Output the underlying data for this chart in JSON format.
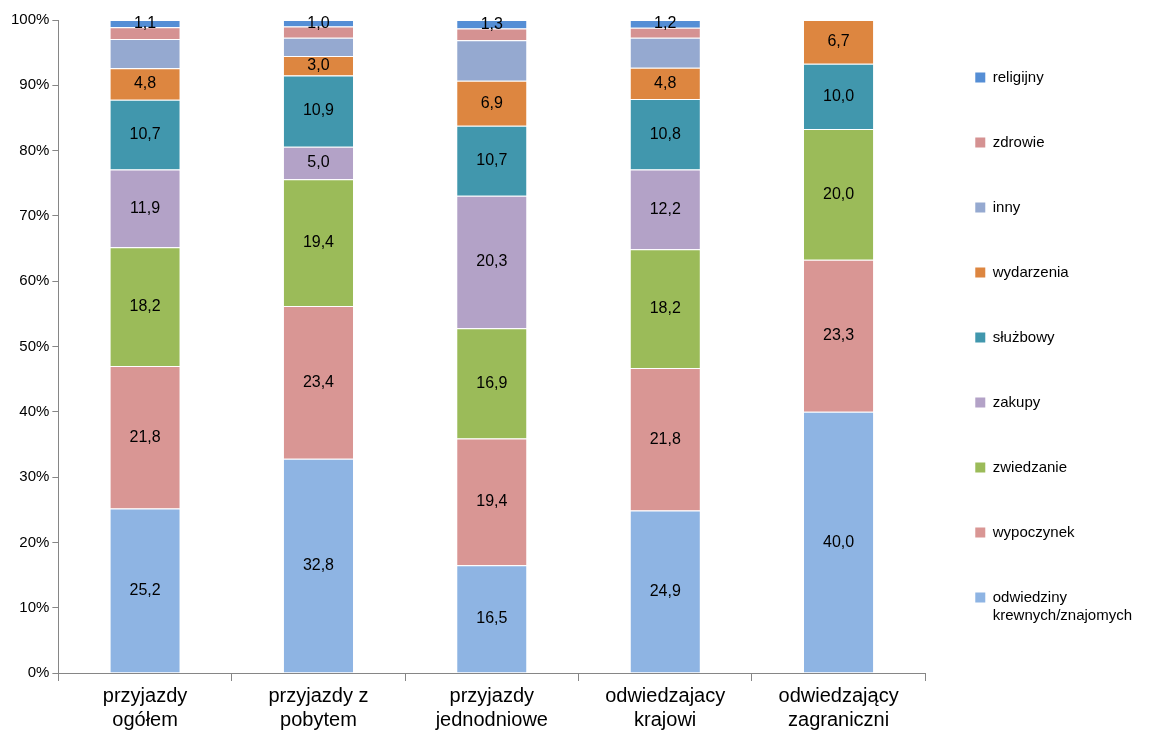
{
  "chart_data": {
    "type": "bar",
    "stacked": true,
    "categories": [
      "przyjazdy ogółem",
      "przyjazdy z pobytem",
      "przyjazdy jednodniowe",
      "odwiedzajacy krajowi",
      "odwiedzający zagraniczni"
    ],
    "ylim": [
      0,
      100
    ],
    "yticks": [
      {
        "value": 0,
        "label": "0%"
      },
      {
        "value": 10,
        "label": "10%"
      },
      {
        "value": 20,
        "label": "20%"
      },
      {
        "value": 30,
        "label": "30%"
      },
      {
        "value": 40,
        "label": "40%"
      },
      {
        "value": 50,
        "label": "50%"
      },
      {
        "value": 60,
        "label": "60%"
      },
      {
        "value": 70,
        "label": "70%"
      },
      {
        "value": 80,
        "label": "80%"
      },
      {
        "value": 90,
        "label": "90%"
      },
      {
        "value": 100,
        "label": "100%"
      }
    ],
    "grid": false,
    "legend": "right",
    "series": [
      {
        "name": "odwiedziny krewnych/znajomych",
        "color": "#8eb4e3",
        "values": [
          25.2,
          32.8,
          16.5,
          24.9,
          40.0
        ],
        "value_labels": [
          "25,2",
          "32,8",
          "16,5",
          "24,9",
          "40,0"
        ]
      },
      {
        "name": "wypoczynek",
        "color": "#d99694",
        "values": [
          21.8,
          23.4,
          19.4,
          21.8,
          23.3
        ],
        "value_labels": [
          "21,8",
          "23,4",
          "19,4",
          "21,8",
          "23,3"
        ]
      },
      {
        "name": "zwiedzanie",
        "color": "#9bbb59",
        "values": [
          18.2,
          19.4,
          16.9,
          18.2,
          20.0
        ],
        "value_labels": [
          "18,2",
          "19,4",
          "16,9",
          "18,2",
          "20,0"
        ]
      },
      {
        "name": "zakupy",
        "color": "#b3a2c7",
        "values": [
          11.9,
          5.0,
          20.3,
          12.2,
          null
        ],
        "value_labels": [
          "11,9",
          "5,0",
          "20,3",
          "12,2",
          null
        ]
      },
      {
        "name": "służbowy",
        "color": "#4197ad",
        "values": [
          10.7,
          10.9,
          10.7,
          10.8,
          10.0
        ],
        "value_labels": [
          "10,7",
          "10,9",
          "10,7",
          "10,8",
          "10,0"
        ]
      },
      {
        "name": "wydarzenia",
        "color": "#dd8640",
        "values": [
          4.8,
          3.0,
          6.9,
          4.8,
          6.7
        ],
        "value_labels": [
          "4,8",
          "3,0",
          "6,9",
          "4,8",
          "6,7"
        ]
      },
      {
        "name": "inny",
        "color": "#95a9d0",
        "values": [
          4.5,
          2.8,
          6.2,
          4.6,
          null
        ],
        "value_labels": [
          null,
          null,
          null,
          null,
          null
        ]
      },
      {
        "name": "zdrowie",
        "color": "#d59292",
        "values": [
          1.8,
          1.7,
          1.8,
          1.5,
          null
        ],
        "value_labels": [
          null,
          null,
          null,
          null,
          null
        ]
      },
      {
        "name": "religijny",
        "color": "#558ed5",
        "values": [
          1.1,
          1.0,
          1.3,
          1.2,
          null
        ],
        "value_labels": [
          "1,1",
          "1,0",
          "1,3",
          "1,2",
          null
        ]
      }
    ]
  }
}
